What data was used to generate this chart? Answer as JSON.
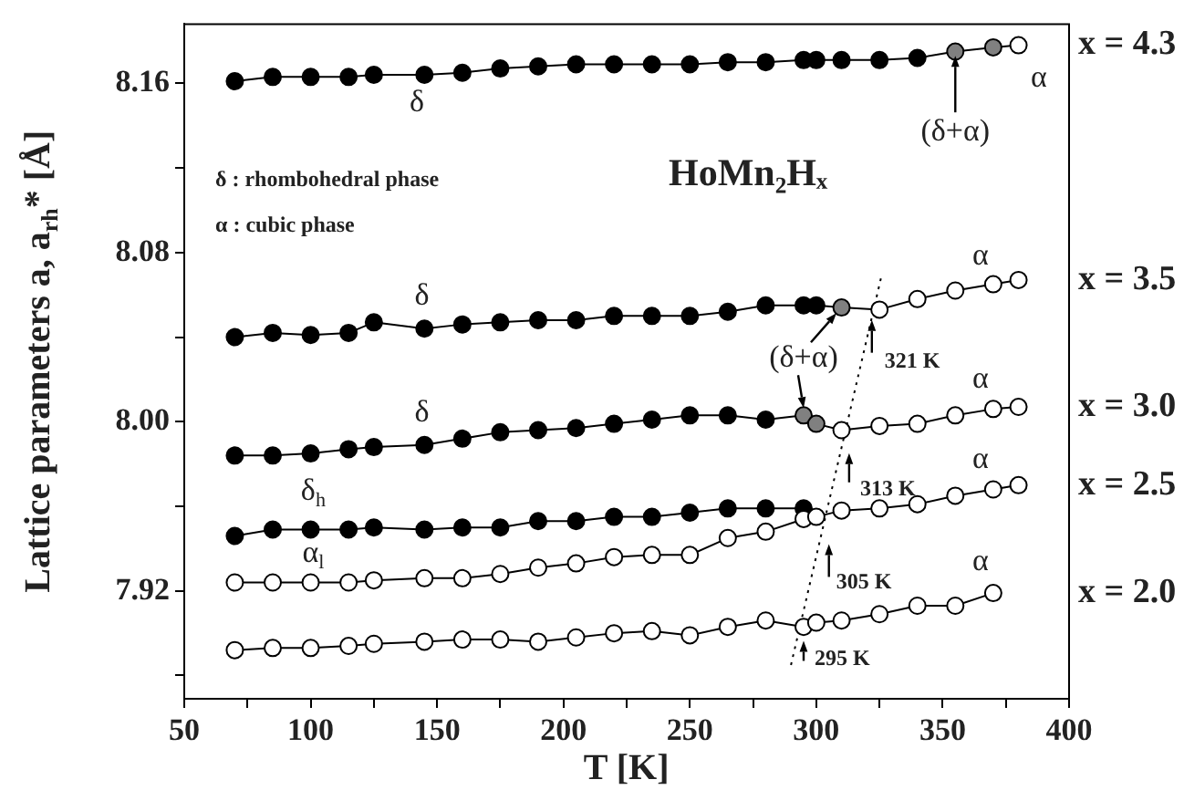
{
  "chart_data": {
    "type": "line",
    "title": "HoMn₂Hₓ",
    "xlabel": "T [K]",
    "ylabel": "Lattice parameters a, a$_{rh}$* [Å]",
    "x": [
      70,
      85,
      100,
      115,
      125,
      145,
      160,
      175,
      190,
      205,
      220,
      235,
      250,
      265,
      280,
      295,
      300,
      310,
      325,
      340,
      355,
      370,
      380
    ],
    "xlim": [
      50,
      400
    ],
    "xticks": [
      50,
      {
        "value": 75,
        "label": null
      },
      100,
      {
        "value": 125,
        "label": null
      },
      150,
      {
        "value": 175,
        "label": null
      },
      200,
      {
        "value": 225,
        "label": null
      },
      250,
      {
        "value": 275,
        "label": null
      },
      300,
      {
        "value": 325,
        "label": null
      },
      350,
      {
        "value": 375,
        "label": null
      },
      400
    ],
    "ylim": [
      7.869,
      8.188
    ],
    "yticks": [
      {
        "value": 7.88,
        "label": null
      },
      7.92,
      {
        "value": 7.96,
        "label": null
      },
      {
        "value": 8,
        "label": "8.00"
      },
      {
        "value": 8.04,
        "label": null
      },
      8.08,
      {
        "value": 8.12,
        "label": null
      },
      8.16
    ],
    "grid": false,
    "marker": "circle",
    "line_style": "solid",
    "series": [
      {
        "name": "x = 4.3",
        "color": "#000000",
        "values": [
          8.161,
          8.163,
          8.163,
          8.163,
          8.164,
          8.164,
          8.165,
          8.167,
          8.168,
          8.169,
          8.169,
          8.169,
          8.169,
          8.17,
          8.17,
          8.171,
          8.171,
          8.171,
          8.171,
          8.172,
          8.175,
          8.177,
          8.178
        ],
        "colors": [
          "#000000",
          "#000000",
          "#000000",
          "#000000",
          "#000000",
          "#000000",
          "#000000",
          "#000000",
          "#000000",
          "#000000",
          "#000000",
          "#000000",
          "#000000",
          "#000000",
          "#000000",
          "#000000",
          "#000000",
          "#000000",
          "#000000",
          "#000000",
          "#808080",
          "#808080",
          "#ffffff"
        ]
      },
      {
        "name": "x = 3.5",
        "color": "#000000",
        "values": [
          8.04,
          8.042,
          8.041,
          8.042,
          8.047,
          8.044,
          8.046,
          8.047,
          8.048,
          8.048,
          8.05,
          8.05,
          8.05,
          8.052,
          8.055,
          8.055,
          8.055,
          8.054,
          8.053,
          8.058,
          8.062,
          8.065,
          8.067
        ],
        "colors": [
          "#000000",
          "#000000",
          "#000000",
          "#000000",
          "#000000",
          "#000000",
          "#000000",
          "#000000",
          "#000000",
          "#000000",
          "#000000",
          "#000000",
          "#000000",
          "#000000",
          "#000000",
          "#000000",
          "#000000",
          "#808080",
          "#ffffff",
          "#ffffff",
          "#ffffff",
          "#ffffff",
          "#ffffff"
        ]
      },
      {
        "name": "x = 3.0",
        "color": "#000000",
        "values": [
          7.984,
          7.984,
          7.985,
          7.987,
          7.988,
          7.989,
          7.992,
          7.995,
          7.996,
          7.997,
          7.999,
          8.001,
          8.003,
          8.003,
          8.001,
          8.003,
          7.999,
          7.996,
          7.998,
          7.999,
          8.003,
          8.006,
          8.007
        ],
        "colors": [
          "#000000",
          "#000000",
          "#000000",
          "#000000",
          "#000000",
          "#000000",
          "#000000",
          "#000000",
          "#000000",
          "#000000",
          "#000000",
          "#000000",
          "#000000",
          "#000000",
          "#000000",
          "#808080",
          "#808080",
          "#ffffff",
          "#ffffff",
          "#ffffff",
          "#ffffff",
          "#ffffff",
          "#ffffff"
        ]
      },
      {
        "name": "x = 2.5",
        "color": "#000000",
        "values": [
          7.924,
          7.924,
          7.924,
          7.924,
          7.925,
          7.926,
          7.926,
          7.928,
          7.931,
          7.933,
          7.936,
          7.937,
          7.937,
          7.945,
          7.948,
          7.954,
          7.955,
          7.958,
          7.959,
          7.961,
          7.965,
          7.968,
          7.97
        ],
        "colors": [
          "#ffffff",
          "#ffffff",
          "#ffffff",
          "#ffffff",
          "#ffffff",
          "#ffffff",
          "#ffffff",
          "#ffffff",
          "#ffffff",
          "#ffffff",
          "#ffffff",
          "#ffffff",
          "#ffffff",
          "#ffffff",
          "#ffffff",
          "#ffffff",
          "#ffffff",
          "#ffffff",
          "#ffffff",
          "#ffffff",
          "#ffffff",
          "#ffffff",
          "#ffffff"
        ]
      },
      {
        "color": "#000000",
        "x": [
          70,
          85,
          100,
          115,
          125,
          145,
          160,
          175,
          190,
          205,
          220,
          235,
          250,
          265,
          280,
          295
        ],
        "values": [
          7.946,
          7.949,
          7.949,
          7.949,
          7.95,
          7.949,
          7.95,
          7.95,
          7.953,
          7.953,
          7.955,
          7.955,
          7.957,
          7.959,
          7.959,
          7.959
        ]
      },
      {
        "name": "x = 2.0",
        "color": "#000000",
        "x": [
          70,
          85,
          100,
          115,
          125,
          145,
          160,
          175,
          190,
          205,
          220,
          235,
          250,
          265,
          280,
          295,
          300,
          310,
          325,
          340,
          355,
          370
        ],
        "values": [
          7.892,
          7.893,
          7.893,
          7.894,
          7.895,
          7.896,
          7.897,
          7.897,
          7.896,
          7.898,
          7.9,
          7.901,
          7.899,
          7.903,
          7.906,
          7.903,
          7.905,
          7.906,
          7.909,
          7.913,
          7.913,
          7.919
        ],
        "colors": [
          "#ffffff",
          "#ffffff",
          "#ffffff",
          "#ffffff",
          "#ffffff",
          "#ffffff",
          "#ffffff",
          "#ffffff",
          "#ffffff",
          "#ffffff",
          "#ffffff",
          "#ffffff",
          "#ffffff",
          "#ffffff",
          "#ffffff",
          "#ffffff",
          "#ffffff",
          "#ffffff",
          "#ffffff",
          "#ffffff",
          "#ffffff",
          "#ffffff"
        ]
      },
      {
        "type": "line",
        "color": "#000000",
        "marker": "none",
        "line_style": "dotted",
        "x": [
          290,
          326
        ],
        "values": [
          7.885,
          8.07
        ]
      }
    ],
    "annotations": [
      "δ : rhombohedral phase",
      "α : cubic phase",
      "δ",
      "δ",
      "δ",
      "δ$_{h}$",
      "α$_{l}$",
      "α",
      "α",
      "α",
      "α",
      "α",
      {
        "text": "(δ+α)",
        "x": 355,
        "y": 8.173
      },
      {
        "text": "(δ+α)",
        "x": 295,
        "y": 8.003
      },
      {
        "text": "321 K",
        "x": 322,
        "y": 8.049
      },
      {
        "text": "313 K",
        "x": 313,
        "y": 7.986
      },
      {
        "text": "305 K",
        "x": 305,
        "y": 7.943
      },
      {
        "text": "295 K",
        "x": 295,
        "y": 7.899
      }
    ]
  }
}
